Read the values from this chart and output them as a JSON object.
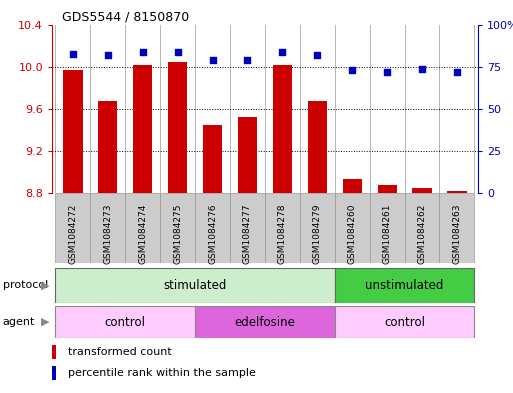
{
  "title": "GDS5544 / 8150870",
  "samples": [
    "GSM1084272",
    "GSM1084273",
    "GSM1084274",
    "GSM1084275",
    "GSM1084276",
    "GSM1084277",
    "GSM1084278",
    "GSM1084279",
    "GSM1084260",
    "GSM1084261",
    "GSM1084262",
    "GSM1084263"
  ],
  "bar_values": [
    9.97,
    9.68,
    10.02,
    10.05,
    9.45,
    9.52,
    10.02,
    9.68,
    8.93,
    8.88,
    8.85,
    8.82
  ],
  "scatter_values": [
    83,
    82,
    84,
    84,
    79,
    79,
    84,
    82,
    73,
    72,
    74,
    72
  ],
  "ylim_left": [
    8.8,
    10.4
  ],
  "ylim_right": [
    0,
    100
  ],
  "yticks_left": [
    8.8,
    9.2,
    9.6,
    10.0,
    10.4
  ],
  "yticks_right": [
    0,
    25,
    50,
    75,
    100
  ],
  "bar_color": "#cc0000",
  "scatter_color": "#0000bb",
  "bar_width": 0.55,
  "protocol_labels": [
    "stimulated",
    "unstimulated"
  ],
  "agent_labels": [
    "control",
    "edelfosine",
    "control"
  ],
  "stim_color": "#cceecc",
  "unstim_color": "#44cc44",
  "ctrl_color": "#ffccff",
  "edel_color": "#dd66dd",
  "legend_bar_label": "transformed count",
  "legend_scatter_label": "percentile rank within the sample",
  "xtick_bg": "#cccccc"
}
